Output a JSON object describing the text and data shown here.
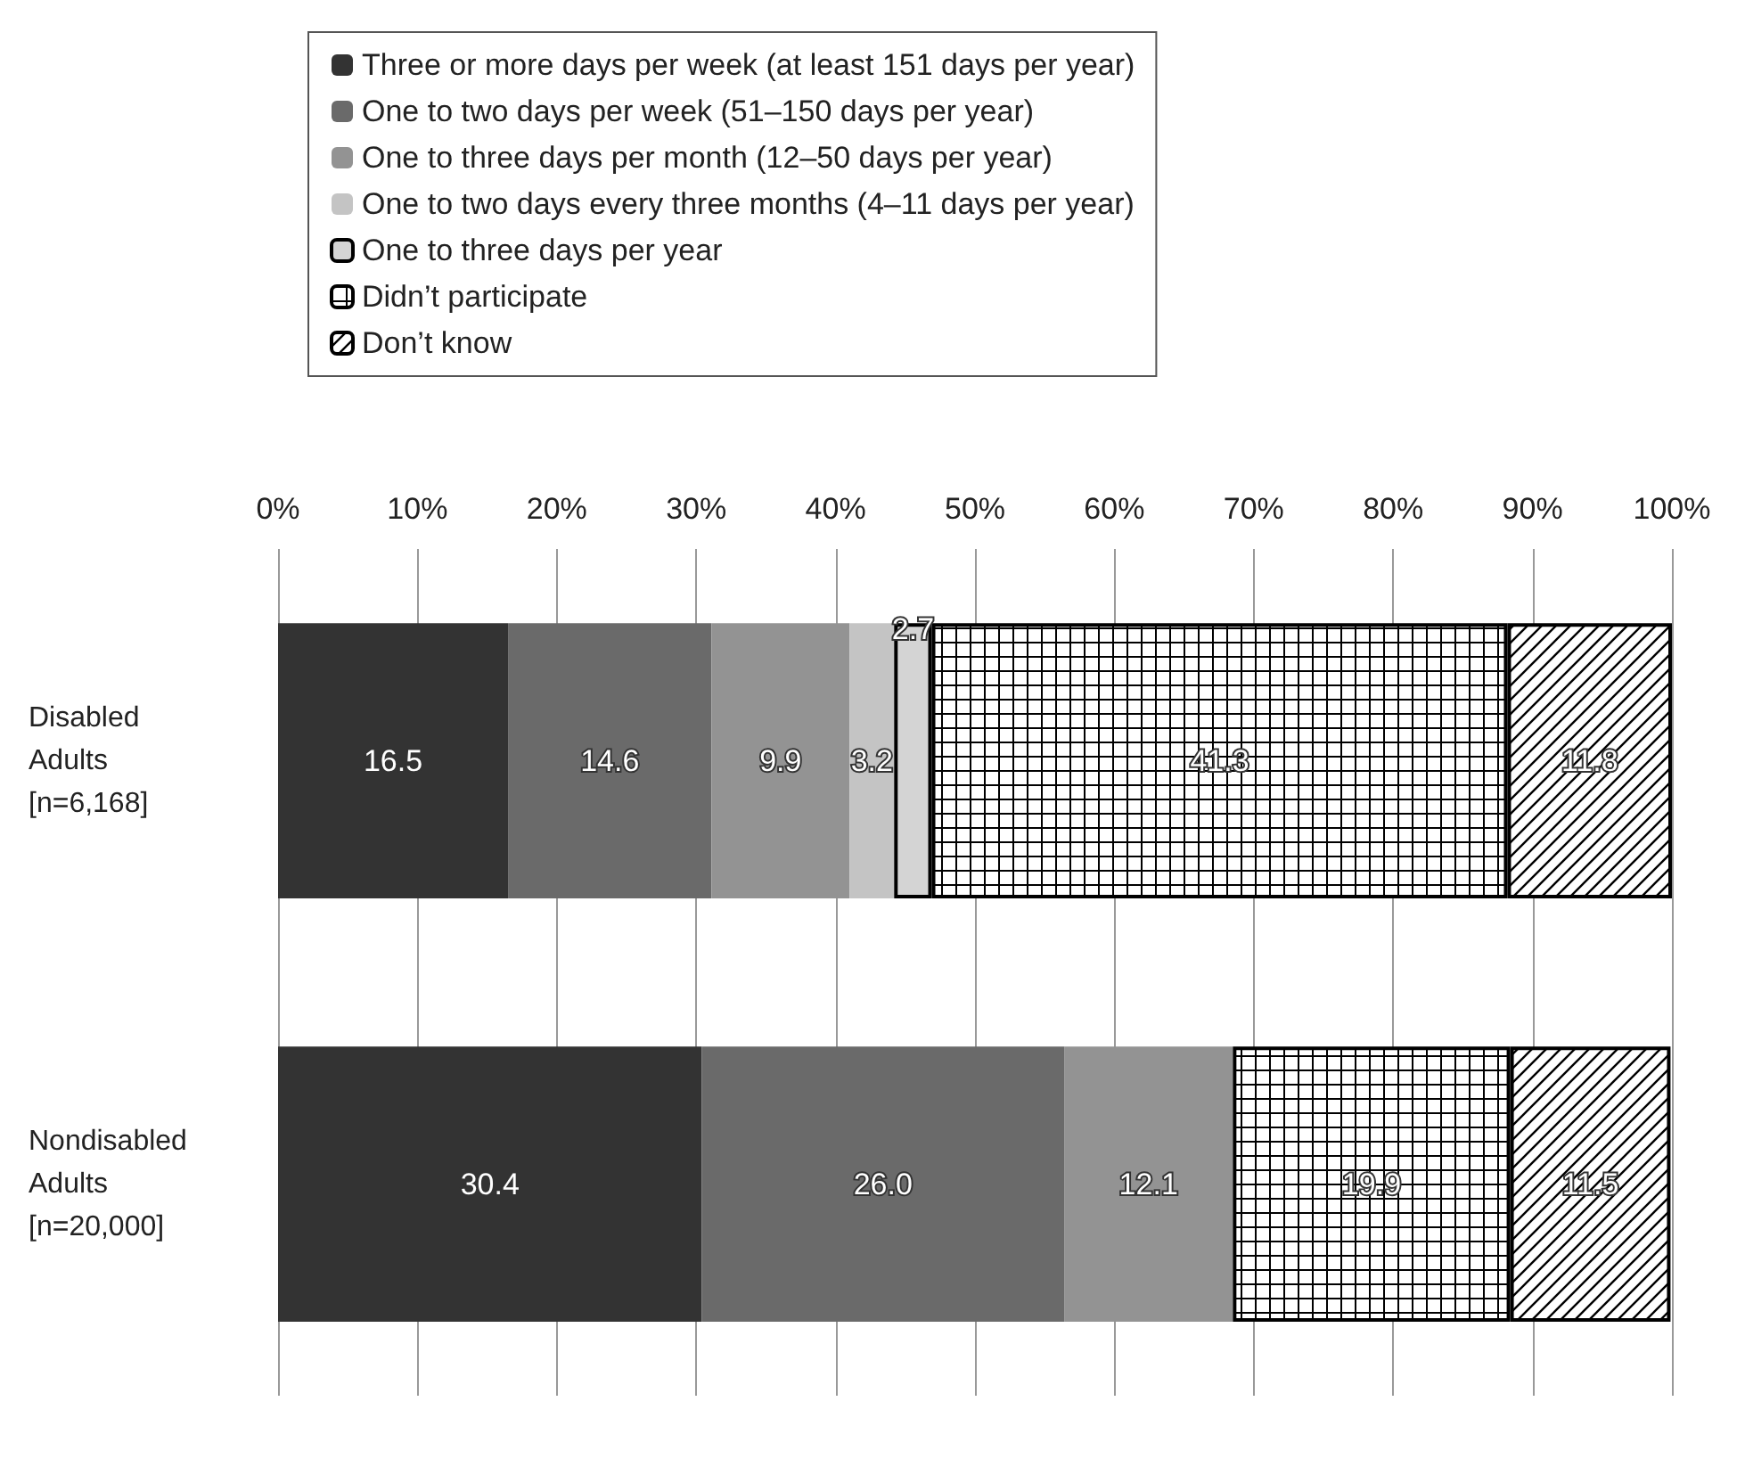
{
  "chart_data": {
    "type": "bar",
    "orientation": "horizontal",
    "stacked": true,
    "grid": "x",
    "legend": "top",
    "categories": [
      "Disabled\nAdults\n[n=6,168]",
      "Nondisabled\nAdults\n[n=20,000]"
    ],
    "xlim": [
      0,
      100
    ],
    "xticks": [
      {
        "value": 0,
        "label": "0%"
      },
      {
        "value": 10,
        "label": "10%"
      },
      {
        "value": 20,
        "label": "20%"
      },
      {
        "value": 30,
        "label": "30%"
      },
      {
        "value": 40,
        "label": "40%"
      },
      {
        "value": 50,
        "label": "50%"
      },
      {
        "value": 60,
        "label": "60%"
      },
      {
        "value": 70,
        "label": "70%"
      },
      {
        "value": 80,
        "label": "80%"
      },
      {
        "value": 90,
        "label": "90%"
      },
      {
        "value": 100,
        "label": "100%"
      }
    ],
    "series": [
      {
        "name": "Three or more days per week (at least 151 days per year)",
        "color": "#333333",
        "values": [
          16.5,
          30.4
        ],
        "value_labels": [
          "16.5",
          "30.4"
        ]
      },
      {
        "name": "One to two days per week (51–150 days per year)",
        "color": "#6a6a6a",
        "values": [
          14.6,
          26.0
        ],
        "value_labels": [
          "14.6",
          "26.0"
        ]
      },
      {
        "name": "One to three days per month (12–50 days per year)",
        "color": "#939393",
        "values": [
          9.9,
          12.1
        ],
        "value_labels": [
          "9.9",
          "12.1"
        ]
      },
      {
        "name": "One to two days every three months (4–11 days per year)",
        "color": "#c4c4c4",
        "values": [
          3.2,
          null
        ],
        "value_labels": [
          "3.2",
          null
        ]
      },
      {
        "name": "One to three days per year",
        "color": "#d4d4d4",
        "values": [
          2.7,
          null
        ],
        "value_labels": [
          "2.7",
          null
        ]
      },
      {
        "name": "Didn’t participate",
        "color": "#000000",
        "values": [
          41.3,
          19.9
        ],
        "value_labels": [
          "41.3",
          "19.9"
        ]
      },
      {
        "name": "Don’t know",
        "color": "#000000",
        "values": [
          11.8,
          11.5
        ],
        "value_labels": [
          "11.8",
          "11.5"
        ]
      }
    ]
  }
}
